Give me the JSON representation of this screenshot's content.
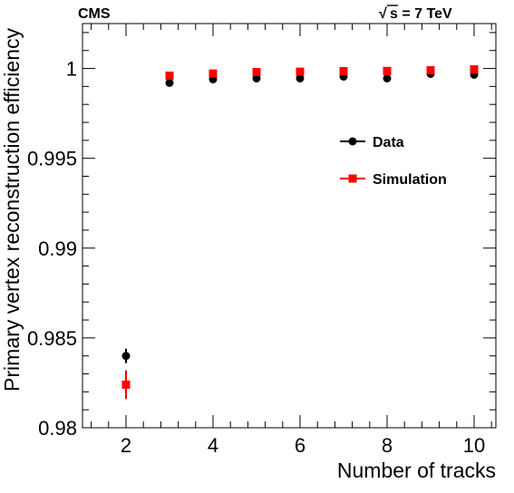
{
  "chart_data": {
    "type": "scatter",
    "experiment_label": "CMS",
    "energy_label": {
      "sqrt_symbol": "√",
      "text": "s = 7 TeV"
    },
    "xlabel": "Number of tracks",
    "ylabel": "Primary vertex reconstruction efficiency",
    "xlim": [
      1.0,
      10.5
    ],
    "ylim": [
      0.98,
      1.0025
    ],
    "xticks": [
      2,
      4,
      6,
      8,
      10
    ],
    "xtick_labels": [
      "2",
      "4",
      "6",
      "8",
      "10"
    ],
    "yticks": [
      0.98,
      0.985,
      0.99,
      0.995,
      1.0
    ],
    "ytick_labels": [
      "0.98",
      "0.985",
      "0.99",
      "0.995",
      "1"
    ],
    "grid": false,
    "legend_position": "upper-right",
    "series": [
      {
        "name": "Data",
        "marker": "circle",
        "color": "#000000",
        "x": [
          2,
          3,
          4,
          5,
          6,
          7,
          8,
          9,
          10
        ],
        "y": [
          0.984,
          0.9992,
          0.9994,
          0.99945,
          0.99945,
          0.99955,
          0.99945,
          0.9997,
          0.99965
        ],
        "yerr": [
          0.0004,
          0,
          0,
          0,
          0,
          0,
          0,
          0,
          0
        ]
      },
      {
        "name": "Simulation",
        "marker": "square",
        "color": "#ff0000",
        "x": [
          2,
          3,
          4,
          5,
          6,
          7,
          8,
          9,
          10
        ],
        "y": [
          0.9824,
          0.9996,
          0.99972,
          0.9998,
          0.99982,
          0.99985,
          0.99986,
          0.9999,
          0.99995
        ],
        "yerr": [
          0.0008,
          0,
          0,
          0,
          0,
          0,
          0,
          0,
          0
        ]
      }
    ]
  }
}
